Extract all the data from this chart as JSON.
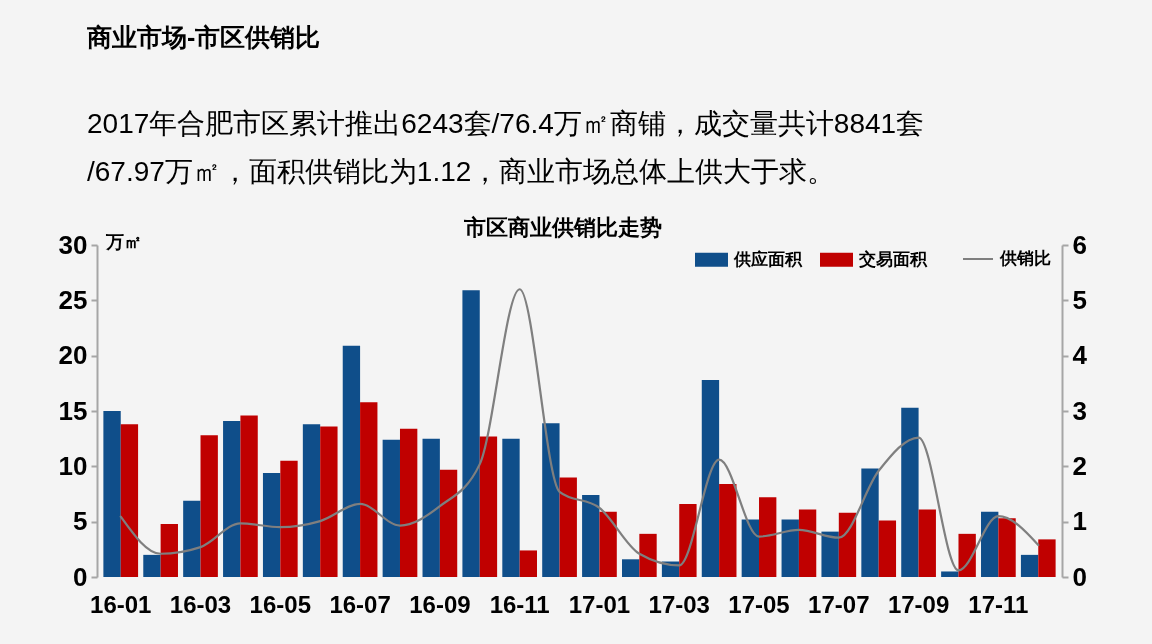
{
  "chart_data": {
    "type": "bar",
    "title": "商业市场-市区供销比",
    "subtitle": "2017年合肥市区累计推出6243套/76.4万㎡商铺，成交量共计8841套\n/67.97万㎡，面积供销比为1.12，商业市场总体上供大于求。",
    "annotations": [
      "市区商业供销比走势"
    ],
    "ylabel": "万㎡",
    "categories": [
      "16-01",
      null,
      "16-03",
      null,
      "16-05",
      null,
      "16-07",
      null,
      "16-09",
      null,
      "16-11",
      null,
      "17-01",
      null,
      "17-03",
      null,
      "17-05",
      null,
      "17-07",
      null,
      "17-09",
      null,
      "17-11",
      null
    ],
    "series": [
      {
        "name": "供应面积",
        "color": "#0f4e8a",
        "values": [
          15.0,
          2.0,
          6.9,
          14.1,
          9.4,
          13.8,
          20.9,
          12.4,
          12.5,
          25.9,
          12.5,
          13.9,
          7.4,
          1.6,
          1.4,
          17.8,
          5.2,
          5.2,
          4.1,
          9.8,
          15.3,
          0.5,
          5.9,
          2.0
        ]
      },
      {
        "name": "交易面积",
        "color": "#c00000",
        "values": [
          13.8,
          4.8,
          12.8,
          14.6,
          10.5,
          13.6,
          15.8,
          13.4,
          9.7,
          12.7,
          2.4,
          9.0,
          5.9,
          3.9,
          6.6,
          8.4,
          7.2,
          6.1,
          5.8,
          5.1,
          6.1,
          3.9,
          5.3,
          3.4
        ]
      },
      {
        "name": "供销比",
        "type": "line",
        "axis": "y2",
        "color": "#7f7f7f",
        "values": [
          1.09,
          0.42,
          0.54,
          0.97,
          0.9,
          1.01,
          1.32,
          0.93,
          1.28,
          2.04,
          5.2,
          1.54,
          1.25,
          0.42,
          0.21,
          2.12,
          0.73,
          0.85,
          0.71,
          1.92,
          2.52,
          0.12,
          1.1,
          0.58
        ]
      }
    ],
    "ylim": [
      0,
      30
    ],
    "yticks": [
      0,
      5,
      10,
      15,
      20,
      25,
      30
    ],
    "y2lim": [
      0,
      6
    ],
    "y2ticks": [
      0,
      1,
      2,
      3,
      4,
      5,
      6
    ],
    "grid": false,
    "legend": "top right"
  }
}
